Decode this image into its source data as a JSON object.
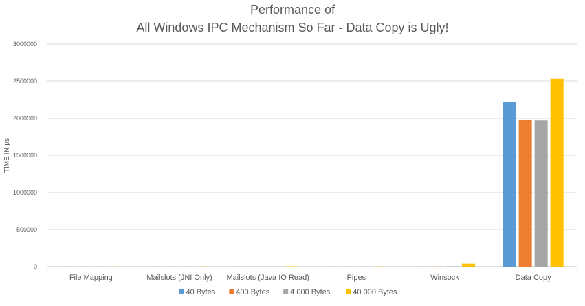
{
  "chart_data": {
    "type": "bar",
    "title_lines": [
      "Performance of",
      "All Windows IPC Mechanism So Far - Data Copy is Ugly!"
    ],
    "ylabel": "TIME IN µs",
    "xlabel": "",
    "ylim": [
      0,
      3000000
    ],
    "yticks": [
      0,
      500000,
      1000000,
      1500000,
      2000000,
      2500000,
      3000000
    ],
    "ytick_labels": [
      "0",
      "500000",
      "1000000",
      "1500000",
      "2000000",
      "2500000",
      "3000000"
    ],
    "categories": [
      "File Mapping",
      "Mailslots (JNI Only)",
      "Mailslots (Java IO Read)",
      "Pipes",
      "Winsock",
      "Data Copy"
    ],
    "series": [
      {
        "name": "40 Bytes",
        "color": "#5b9bd5",
        "values": [
          200,
          300,
          500,
          300,
          800,
          2220000
        ]
      },
      {
        "name": "400 Bytes",
        "color": "#ed7d31",
        "values": [
          200,
          300,
          600,
          300,
          1500,
          1980000
        ]
      },
      {
        "name": "4 000 Bytes",
        "color": "#a5a5a5",
        "values": [
          300,
          400,
          1200,
          500,
          5000,
          1970000
        ]
      },
      {
        "name": "40 000 Bytes",
        "color": "#ffc000",
        "values": [
          1000,
          1500,
          3500,
          2000,
          40000,
          2530000
        ]
      }
    ],
    "grid": true,
    "legend_position": "bottom"
  }
}
